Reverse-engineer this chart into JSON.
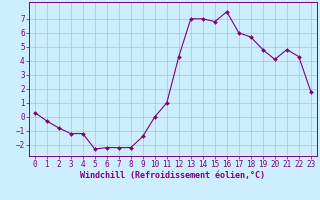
{
  "x": [
    0,
    1,
    2,
    3,
    4,
    5,
    6,
    7,
    8,
    9,
    10,
    11,
    12,
    13,
    14,
    15,
    16,
    17,
    18,
    19,
    20,
    21,
    22,
    23
  ],
  "y": [
    0.3,
    -0.3,
    -0.8,
    -1.2,
    -1.2,
    -2.3,
    -2.2,
    -2.2,
    -2.2,
    -1.4,
    0.0,
    1.0,
    4.3,
    7.0,
    7.0,
    6.8,
    7.5,
    6.0,
    5.7,
    4.8,
    4.1,
    4.8,
    4.3,
    1.8
  ],
  "line_color": "#800080",
  "marker": "D",
  "marker_size": 2.0,
  "bg_color": "#cceeff",
  "grid_color": "#99cccc",
  "xlabel": "Windchill (Refroidissement éolien,°C)",
  "xlim": [
    -0.5,
    23.5
  ],
  "ylim": [
    -2.8,
    8.2
  ],
  "xticks": [
    0,
    1,
    2,
    3,
    4,
    5,
    6,
    7,
    8,
    9,
    10,
    11,
    12,
    13,
    14,
    15,
    16,
    17,
    18,
    19,
    20,
    21,
    22,
    23
  ],
  "yticks": [
    -2,
    -1,
    0,
    1,
    2,
    3,
    4,
    5,
    6,
    7
  ],
  "tick_fontsize": 5.5,
  "xlabel_fontsize": 6.0
}
